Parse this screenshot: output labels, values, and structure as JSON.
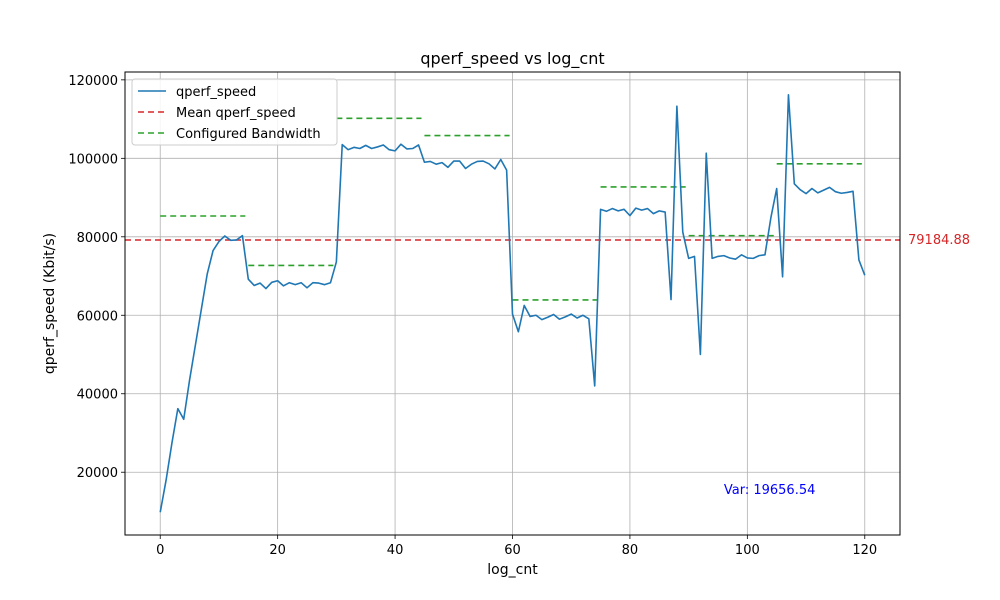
{
  "chart_data": {
    "type": "line",
    "title": "qperf_speed vs log_cnt",
    "xlabel": "log_cnt",
    "ylabel": "qperf_speed (Kbit/s)",
    "xlim": [
      -6,
      126
    ],
    "ylim": [
      4000,
      122000
    ],
    "x_ticks": [
      0,
      20,
      40,
      60,
      80,
      100,
      120
    ],
    "y_ticks": [
      20000,
      40000,
      60000,
      80000,
      100000,
      120000
    ],
    "grid": true,
    "legend_position": "top-left",
    "colors": {
      "series": "#1f77b4",
      "mean": "#d62728",
      "configured": "#2ca02c",
      "variance": "#0000ff"
    },
    "series": [
      {
        "name": "qperf_speed",
        "x": [
          0,
          1,
          2,
          3,
          4,
          5,
          6,
          7,
          8,
          9,
          10,
          11,
          12,
          13,
          14,
          15,
          16,
          17,
          18,
          19,
          20,
          21,
          22,
          23,
          24,
          25,
          26,
          27,
          28,
          29,
          30,
          31,
          32,
          33,
          34,
          35,
          36,
          37,
          38,
          39,
          40,
          41,
          42,
          43,
          44,
          45,
          46,
          47,
          48,
          49,
          50,
          51,
          52,
          53,
          54,
          55,
          56,
          57,
          58,
          59,
          60,
          61,
          62,
          63,
          64,
          65,
          66,
          67,
          68,
          69,
          70,
          71,
          72,
          73,
          74,
          75,
          76,
          77,
          78,
          79,
          80,
          81,
          82,
          83,
          84,
          85,
          86,
          87,
          88,
          89,
          90,
          91,
          92,
          93,
          94,
          95,
          96,
          97,
          98,
          99,
          100,
          101,
          102,
          103,
          104,
          105,
          106,
          107,
          108,
          109,
          110,
          111,
          112,
          113,
          114,
          115,
          116,
          117,
          118,
          119,
          120
        ],
        "y": [
          9800,
          18000,
          27500,
          36200,
          33500,
          43500,
          52500,
          61500,
          70500,
          76500,
          78800,
          80200,
          79100,
          79200,
          80300,
          69200,
          67600,
          68200,
          66800,
          68400,
          68800,
          67500,
          68300,
          67800,
          68300,
          67000,
          68300,
          68200,
          67800,
          68300,
          73600,
          103500,
          102200,
          102800,
          102500,
          103300,
          102500,
          102900,
          103400,
          102200,
          101900,
          103600,
          102400,
          102500,
          103400,
          99000,
          99200,
          98500,
          98900,
          97700,
          99300,
          99300,
          97400,
          98500,
          99200,
          99300,
          98600,
          97300,
          99700,
          97000,
          60300,
          55800,
          62500,
          59700,
          60000,
          58900,
          59500,
          60200,
          59000,
          59600,
          60300,
          59300,
          60000,
          59100,
          42000,
          87000,
          86500,
          87200,
          86600,
          87000,
          85400,
          87300,
          86800,
          87200,
          85900,
          86600,
          86300,
          64000,
          113300,
          81200,
          74500,
          75000,
          50000,
          101300,
          74500,
          75000,
          75200,
          74600,
          74300,
          75400,
          74600,
          74500,
          75200,
          75400,
          84800,
          92300,
          69800,
          116200,
          93500,
          92000,
          91000,
          92300,
          91200,
          91900,
          92600,
          91500,
          91100,
          91300,
          91600,
          74100,
          70200
        ]
      },
      {
        "name": "Mean qperf_speed",
        "value": 79184.88
      },
      {
        "name": "Configured Bandwidth",
        "segments": [
          {
            "x": [
              0,
              14.5
            ],
            "y": 85300
          },
          {
            "x": [
              15,
              29.5
            ],
            "y": 72700
          },
          {
            "x": [
              30,
              44.5
            ],
            "y": 110200
          },
          {
            "x": [
              45,
              59.5
            ],
            "y": 105800
          },
          {
            "x": [
              60,
              74.5
            ],
            "y": 63900
          },
          {
            "x": [
              75,
              89.5
            ],
            "y": 92700
          },
          {
            "x": [
              90,
              104.5
            ],
            "y": 80300
          },
          {
            "x": [
              105,
              119.5
            ],
            "y": 98600
          }
        ]
      }
    ],
    "annotations": {
      "mean_label": "79184.88",
      "variance_label": "Var: 19656.54",
      "variance_at": [
        96,
        15700
      ]
    }
  }
}
